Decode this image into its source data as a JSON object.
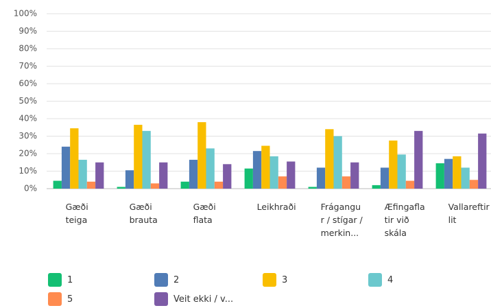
{
  "chart_data": {
    "type": "bar",
    "categories": [
      "Gæði teiga",
      "Gæði brauta",
      "Gæði flata",
      "Leikhraði",
      "Frágangur / stígar / merkin...",
      "Æfingaflatir við skála",
      "Vallareftirlit"
    ],
    "series": [
      {
        "name": "1",
        "color": "#14bf73",
        "values": [
          4.5,
          1,
          4,
          11.5,
          1,
          2,
          14.5
        ]
      },
      {
        "name": "2",
        "color": "#507cb6",
        "values": [
          24,
          10.5,
          16.5,
          21.5,
          12,
          12,
          17
        ]
      },
      {
        "name": "3",
        "color": "#f9be00",
        "values": [
          34.5,
          36.5,
          38,
          24.5,
          34,
          27.5,
          18.5
        ]
      },
      {
        "name": "4",
        "color": "#6bc8cd",
        "values": [
          16.5,
          33,
          23,
          18.5,
          30,
          19.5,
          12
        ]
      },
      {
        "name": "5",
        "color": "#ff8b4f",
        "values": [
          4,
          3,
          4,
          7,
          7,
          4.5,
          5
        ]
      },
      {
        "name": "Veit ekki / v...",
        "color": "#7d5ba6",
        "values": [
          15,
          15,
          14,
          15.5,
          15,
          33,
          31.5
        ]
      }
    ],
    "ylim": [
      0,
      100
    ],
    "yticks": [
      {
        "value": 0,
        "label": "0%"
      },
      {
        "value": 10,
        "label": "10%"
      },
      {
        "value": 20,
        "label": "20%"
      },
      {
        "value": 30,
        "label": "30%"
      },
      {
        "value": 40,
        "label": "40%"
      },
      {
        "value": 50,
        "label": "50%"
      },
      {
        "value": 60,
        "label": "60%"
      },
      {
        "value": 70,
        "label": "70%"
      },
      {
        "value": 80,
        "label": "80%"
      },
      {
        "value": 90,
        "label": "90%"
      },
      {
        "value": 100,
        "label": "100%"
      }
    ],
    "grid": true
  }
}
